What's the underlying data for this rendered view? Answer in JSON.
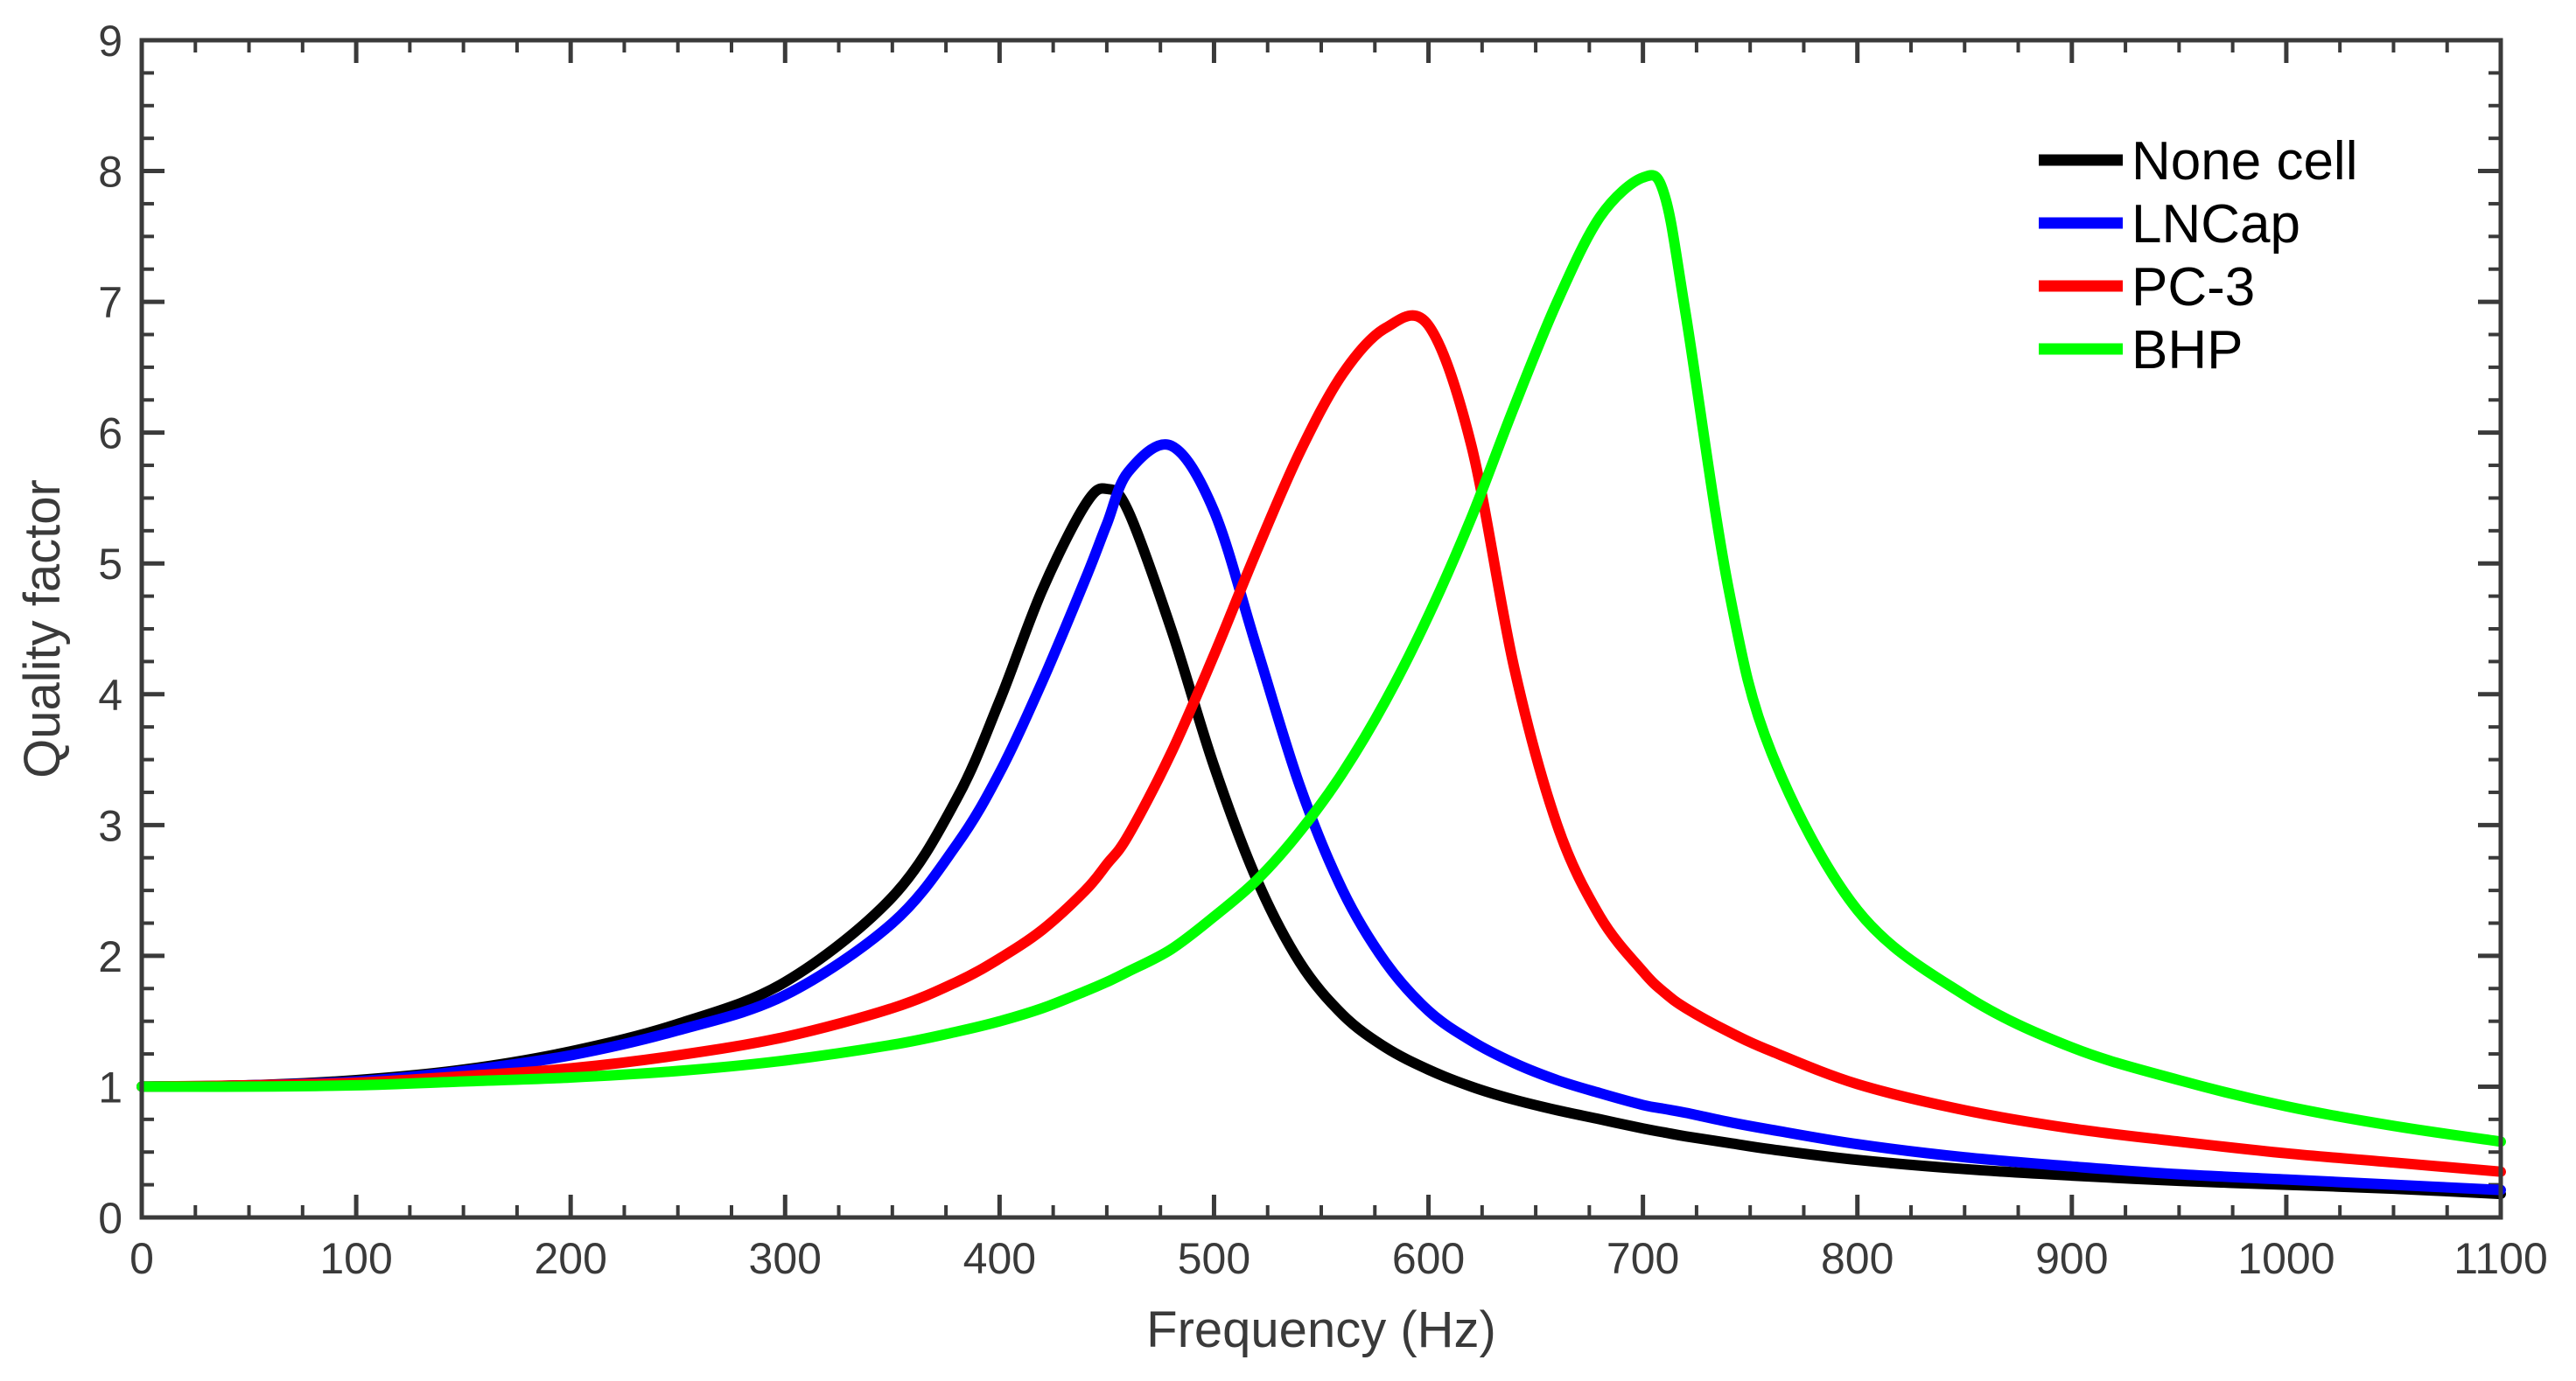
{
  "chart_data": {
    "type": "line",
    "title": "",
    "xlabel": "Frequency (Hz)",
    "ylabel": "Quality factor",
    "xlim": [
      0,
      1100
    ],
    "ylim": [
      0,
      9
    ],
    "grid": false,
    "legend_position": "top-right",
    "x_ticks": [
      "0",
      "100",
      "200",
      "300",
      "400",
      "500",
      "600",
      "700",
      "800",
      "900",
      "1000",
      "1100"
    ],
    "y_ticks": [
      "0",
      "1",
      "2",
      "3",
      "4",
      "5",
      "6",
      "7",
      "8",
      "9"
    ],
    "x": [
      0,
      50,
      100,
      150,
      200,
      250,
      300,
      350,
      380,
      400,
      420,
      440,
      450,
      460,
      480,
      500,
      520,
      540,
      560,
      580,
      600,
      620,
      640,
      660,
      680,
      700,
      710,
      720,
      740,
      760,
      800,
      850,
      900,
      950,
      1000,
      1050,
      1100
    ],
    "series": [
      {
        "name": "None cell",
        "color": "#000000",
        "values": [
          1.0,
          1.01,
          1.05,
          1.13,
          1.27,
          1.48,
          1.8,
          2.45,
          3.2,
          3.95,
          4.8,
          5.45,
          5.57,
          5.4,
          4.5,
          3.45,
          2.58,
          1.95,
          1.55,
          1.3,
          1.13,
          1.0,
          0.9,
          0.82,
          0.75,
          0.68,
          0.65,
          0.62,
          0.57,
          0.52,
          0.44,
          0.37,
          0.32,
          0.28,
          0.25,
          0.22,
          0.18
        ]
      },
      {
        "name": "LNCap",
        "color": "#0000ff",
        "values": [
          1.0,
          1.01,
          1.04,
          1.12,
          1.24,
          1.43,
          1.7,
          2.25,
          2.85,
          3.4,
          4.1,
          4.88,
          5.3,
          5.7,
          5.9,
          5.4,
          4.35,
          3.3,
          2.5,
          1.95,
          1.58,
          1.35,
          1.18,
          1.05,
          0.95,
          0.86,
          0.83,
          0.8,
          0.73,
          0.67,
          0.56,
          0.46,
          0.39,
          0.33,
          0.29,
          0.25,
          0.21
        ]
      },
      {
        "name": "PC-3",
        "color": "#ff0000",
        "values": [
          1.0,
          1.01,
          1.03,
          1.08,
          1.14,
          1.24,
          1.38,
          1.6,
          1.8,
          1.98,
          2.2,
          2.5,
          2.7,
          2.92,
          3.55,
          4.3,
          5.1,
          5.85,
          6.45,
          6.8,
          6.82,
          5.9,
          4.2,
          3.0,
          2.3,
          1.88,
          1.72,
          1.6,
          1.42,
          1.27,
          1.02,
          0.82,
          0.68,
          0.58,
          0.49,
          0.42,
          0.35
        ]
      },
      {
        "name": "BHP",
        "color": "#00ff00",
        "values": [
          1.0,
          1.0,
          1.01,
          1.04,
          1.07,
          1.12,
          1.2,
          1.32,
          1.42,
          1.5,
          1.6,
          1.73,
          1.8,
          1.88,
          2.05,
          2.3,
          2.58,
          2.95,
          3.4,
          3.95,
          4.6,
          5.35,
          6.2,
          7.0,
          7.65,
          7.95,
          7.82,
          6.9,
          4.8,
          3.55,
          2.35,
          1.7,
          1.3,
          1.05,
          0.85,
          0.7,
          0.58
        ]
      }
    ]
  }
}
